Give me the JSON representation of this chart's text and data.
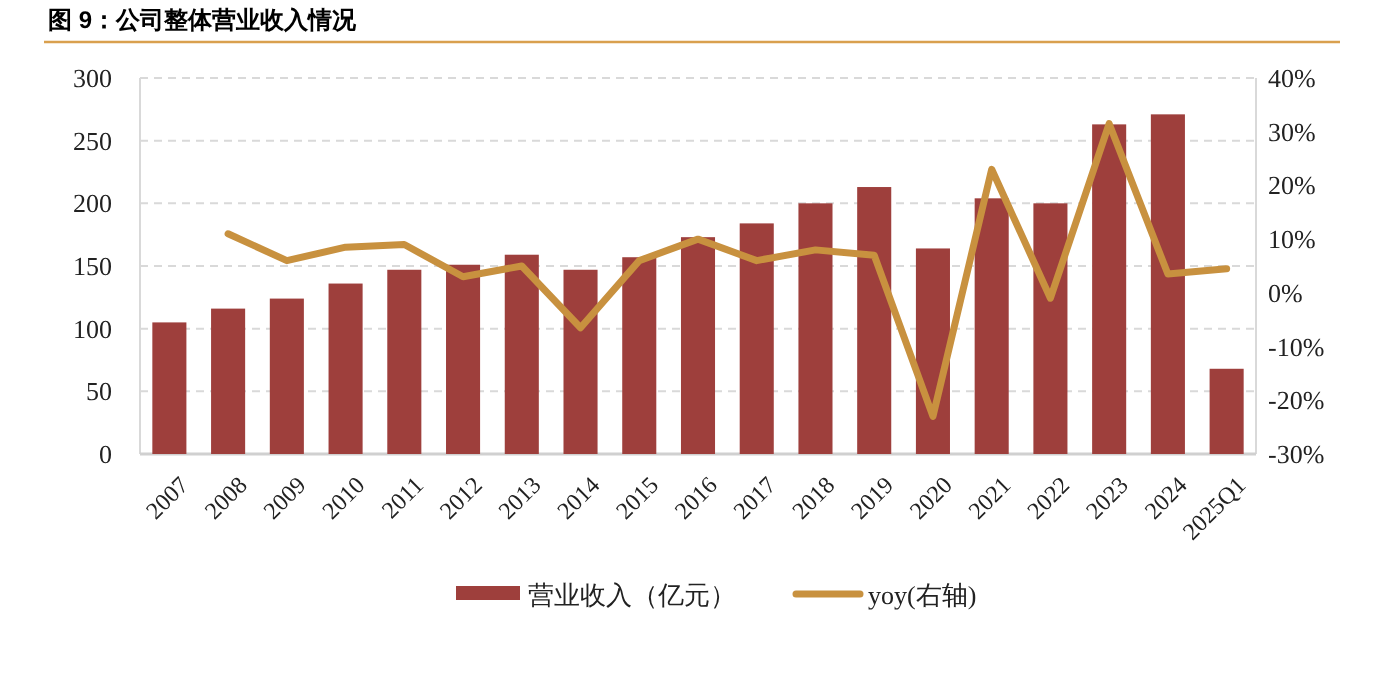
{
  "chart_data": {
    "type": "bar",
    "title": "图 9：公司整体营业收入情况",
    "categories": [
      "2007",
      "2008",
      "2009",
      "2010",
      "2011",
      "2012",
      "2013",
      "2014",
      "2015",
      "2016",
      "2017",
      "2018",
      "2019",
      "2020",
      "2021",
      "2022",
      "2023",
      "2024",
      "2025Q1"
    ],
    "series": [
      {
        "name": "营业收入（亿元）",
        "color": "#9e3f3c",
        "values": [
          105,
          116,
          124,
          136,
          147,
          151,
          159,
          147,
          157,
          173,
          184,
          200,
          213,
          164,
          204,
          200,
          263,
          271,
          68
        ]
      },
      {
        "name": "yoy(右轴)",
        "type": "line",
        "axis": "y2",
        "color": "#c8913f",
        "values": [
          null,
          11,
          6,
          8.5,
          9,
          3,
          5,
          -6.5,
          6,
          10,
          6,
          8,
          7,
          -23,
          23,
          -1,
          31.5,
          3.5,
          4.5
        ]
      }
    ],
    "ylim": [
      0,
      300
    ],
    "yticks": [
      0,
      50,
      100,
      150,
      200,
      250,
      300
    ],
    "y2lim": [
      -30,
      40
    ],
    "y2ticks": [
      {
        "value": -30,
        "label": "-30%"
      },
      {
        "value": -20,
        "label": "-20%"
      },
      {
        "value": -10,
        "label": "-10%"
      },
      {
        "value": 0,
        "label": "0%"
      },
      {
        "value": 10,
        "label": "10%"
      },
      {
        "value": 20,
        "label": "20%"
      },
      {
        "value": 30,
        "label": "30%"
      },
      {
        "value": 40,
        "label": "40%"
      }
    ],
    "grid": "y",
    "legend": "bottom",
    "marker": "none",
    "line_style": "solid"
  }
}
